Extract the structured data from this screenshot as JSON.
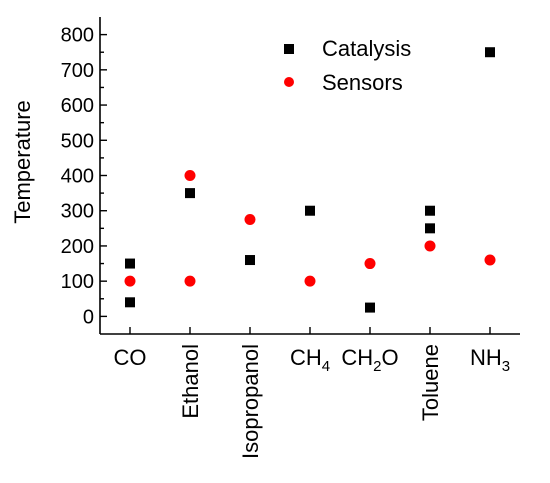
{
  "chart_data": {
    "type": "scatter",
    "title": "",
    "ylabel": "Temperature",
    "xlabel": "",
    "ylim": [
      -50,
      850
    ],
    "yticks": [
      0,
      100,
      200,
      300,
      400,
      500,
      600,
      700,
      800
    ],
    "categories": [
      {
        "label": "CO",
        "base": "CO",
        "sub": "",
        "after": "",
        "rotated": false
      },
      {
        "label": "Ethanol",
        "base": "Ethanol",
        "sub": "",
        "after": "",
        "rotated": true
      },
      {
        "label": "Isopropanol",
        "base": "Isopropanol",
        "sub": "",
        "after": "",
        "rotated": true
      },
      {
        "label": "CH4",
        "base": "CH",
        "sub": "4",
        "after": "",
        "rotated": false
      },
      {
        "label": "CH2O",
        "base": "CH",
        "sub": "2",
        "after": "O",
        "rotated": false
      },
      {
        "label": "Toluene",
        "base": "Toluene",
        "sub": "",
        "after": "",
        "rotated": true
      },
      {
        "label": "NH3",
        "base": "NH",
        "sub": "3",
        "after": "",
        "rotated": false
      }
    ],
    "series": [
      {
        "name": "Catalysis",
        "marker": "square",
        "color": "#000000",
        "points": [
          {
            "category": "CO",
            "y": 150
          },
          {
            "category": "CO",
            "y": 40
          },
          {
            "category": "Ethanol",
            "y": 350
          },
          {
            "category": "Isopropanol",
            "y": 160
          },
          {
            "category": "CH4",
            "y": 300
          },
          {
            "category": "CH2O",
            "y": 25
          },
          {
            "category": "Toluene",
            "y": 300
          },
          {
            "category": "Toluene",
            "y": 250
          },
          {
            "category": "NH3",
            "y": 750
          }
        ]
      },
      {
        "name": "Sensors",
        "marker": "circle",
        "color": "#ff0000",
        "points": [
          {
            "category": "CO",
            "y": 100
          },
          {
            "category": "Ethanol",
            "y": 400
          },
          {
            "category": "Ethanol",
            "y": 100
          },
          {
            "category": "Isopropanol",
            "y": 275
          },
          {
            "category": "CH4",
            "y": 100
          },
          {
            "category": "CH2O",
            "y": 150
          },
          {
            "category": "Toluene",
            "y": 200
          },
          {
            "category": "NH3",
            "y": 160
          }
        ]
      }
    ],
    "legend": {
      "position": "top-right"
    }
  }
}
